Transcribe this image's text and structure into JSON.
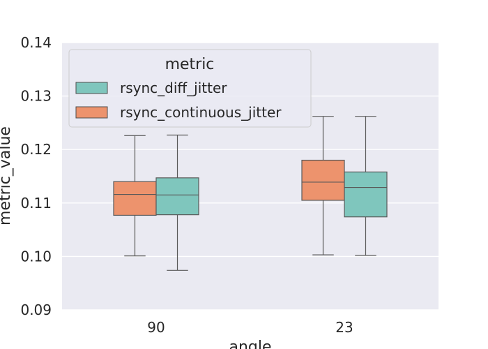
{
  "chart_data": {
    "type": "box",
    "xlabel": "angle",
    "ylabel": "metric_value",
    "ylim": [
      0.09,
      0.14
    ],
    "yticks": [
      "0.09",
      "0.10",
      "0.11",
      "0.12",
      "0.13",
      "0.14"
    ],
    "categories": [
      "90",
      "23"
    ],
    "legend": {
      "title": "metric",
      "position": "top-left"
    },
    "grid": true,
    "series": [
      {
        "name": "rsync_diff_jitter",
        "color": "#7fc6bd",
        "boxes": [
          {
            "category": "90",
            "whisker_low": 0.0974,
            "q1": 0.1078,
            "median": 0.1115,
            "q3": 0.1147,
            "whisker_high": 0.1227
          },
          {
            "category": "23",
            "whisker_low": 0.1002,
            "q1": 0.1074,
            "median": 0.1129,
            "q3": 0.1158,
            "whisker_high": 0.1262
          }
        ]
      },
      {
        "name": "rsync_continuous_jitter",
        "color": "#ed936d",
        "boxes": [
          {
            "category": "90",
            "whisker_low": 0.1001,
            "q1": 0.1077,
            "median": 0.1116,
            "q3": 0.114,
            "whisker_high": 0.1226
          },
          {
            "category": "23",
            "whisker_low": 0.1003,
            "q1": 0.1105,
            "median": 0.1139,
            "q3": 0.118,
            "whisker_high": 0.1262
          }
        ]
      }
    ]
  }
}
